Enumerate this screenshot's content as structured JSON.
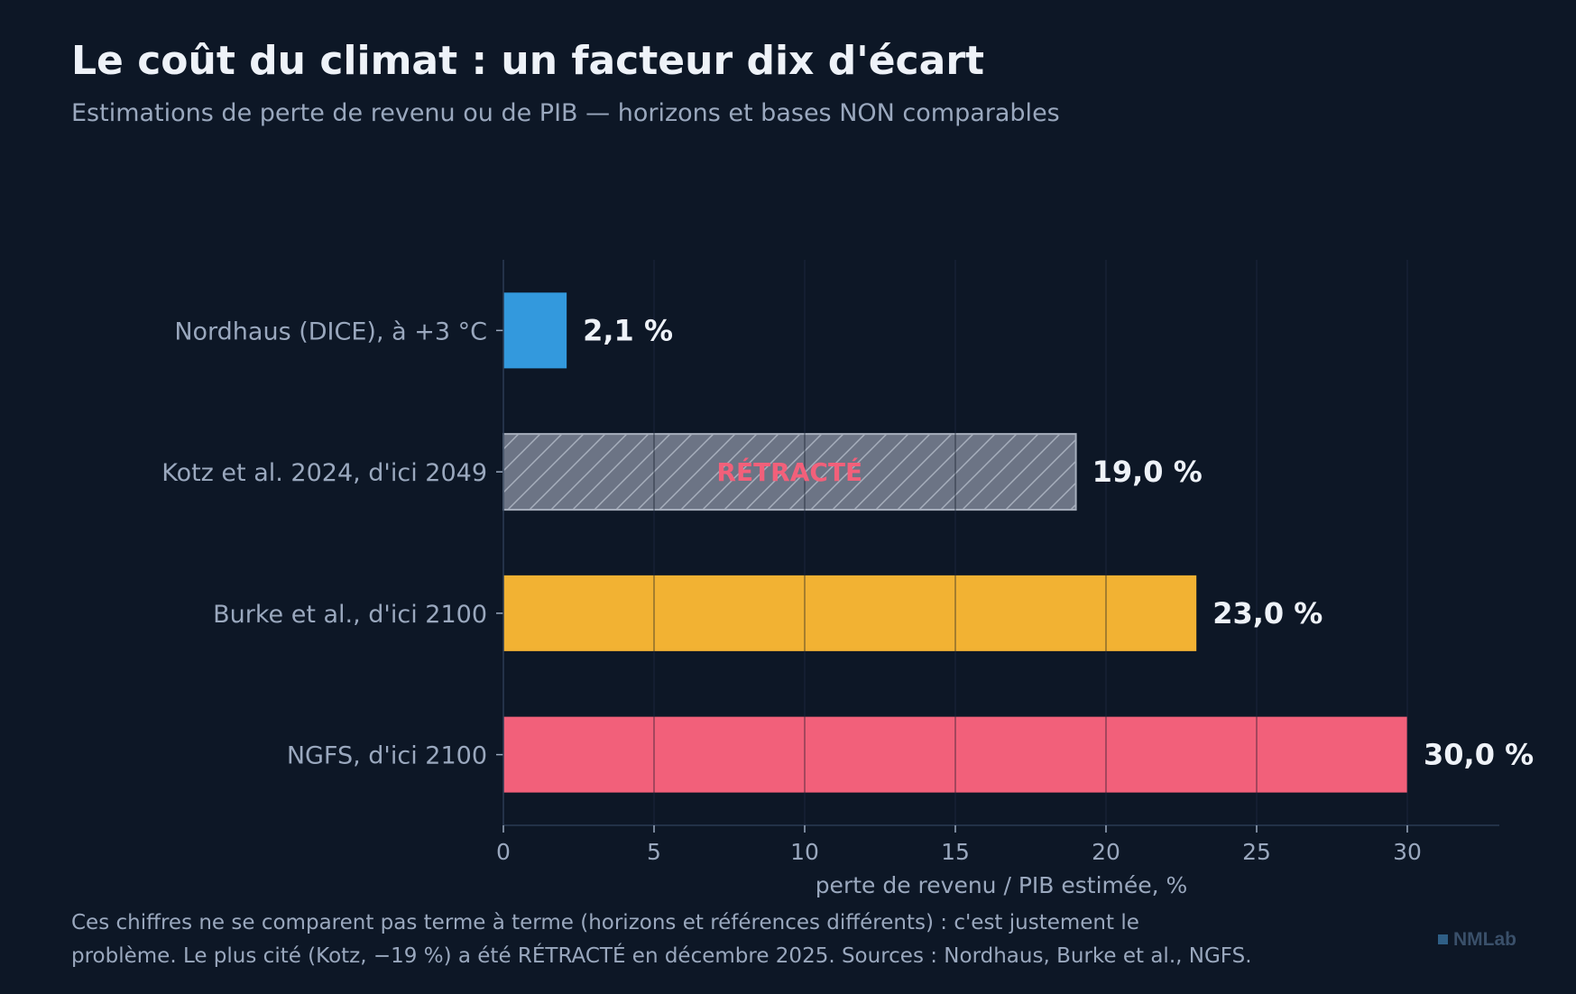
{
  "header": {
    "title": "Le coût du climat : un facteur dix d'écart",
    "subtitle": "Estimations de perte de revenu ou de PIB — horizons et bases NON comparables"
  },
  "chart_data": {
    "type": "bar",
    "orientation": "horizontal",
    "categories": [
      "Nordhaus (DICE), à +3 °C",
      "Kotz et al. 2024, d'ici 2049",
      "Burke et al., d'ici 2100",
      "NGFS, d'ici 2100"
    ],
    "values": [
      2.1,
      19.0,
      23.0,
      30.0
    ],
    "value_labels": [
      "2,1 %",
      "19,0 %",
      "23,0 %",
      "30,0 %"
    ],
    "bar_colors": [
      "#3399dd",
      "#6c7485",
      "#f2b233",
      "#f2607a"
    ],
    "hatched": [
      false,
      true,
      false,
      false
    ],
    "bar_annotations": [
      "",
      "RÉTRACTÉ",
      "",
      ""
    ],
    "annotation_color": "#f2607a",
    "xlim": [
      0,
      34
    ],
    "xticks": [
      0,
      5,
      10,
      15,
      20,
      25,
      30
    ],
    "xtick_labels": [
      "0",
      "5",
      "10",
      "15",
      "20",
      "25",
      "30"
    ],
    "xlabel": "perte de revenu / PIB estimée, %",
    "ylabel": "",
    "grid": true,
    "legend": "none"
  },
  "footer": {
    "note_line1": "Ces chiffres ne se comparent pas terme à terme (horizons et références différents) : c'est justement le",
    "note_line2": "problème. Le plus cité (Kotz, −19 %) a été RÉTRACTÉ en décembre 2025. Sources : Nordhaus, Burke et al., NGFS.",
    "brand": "NMLab"
  }
}
